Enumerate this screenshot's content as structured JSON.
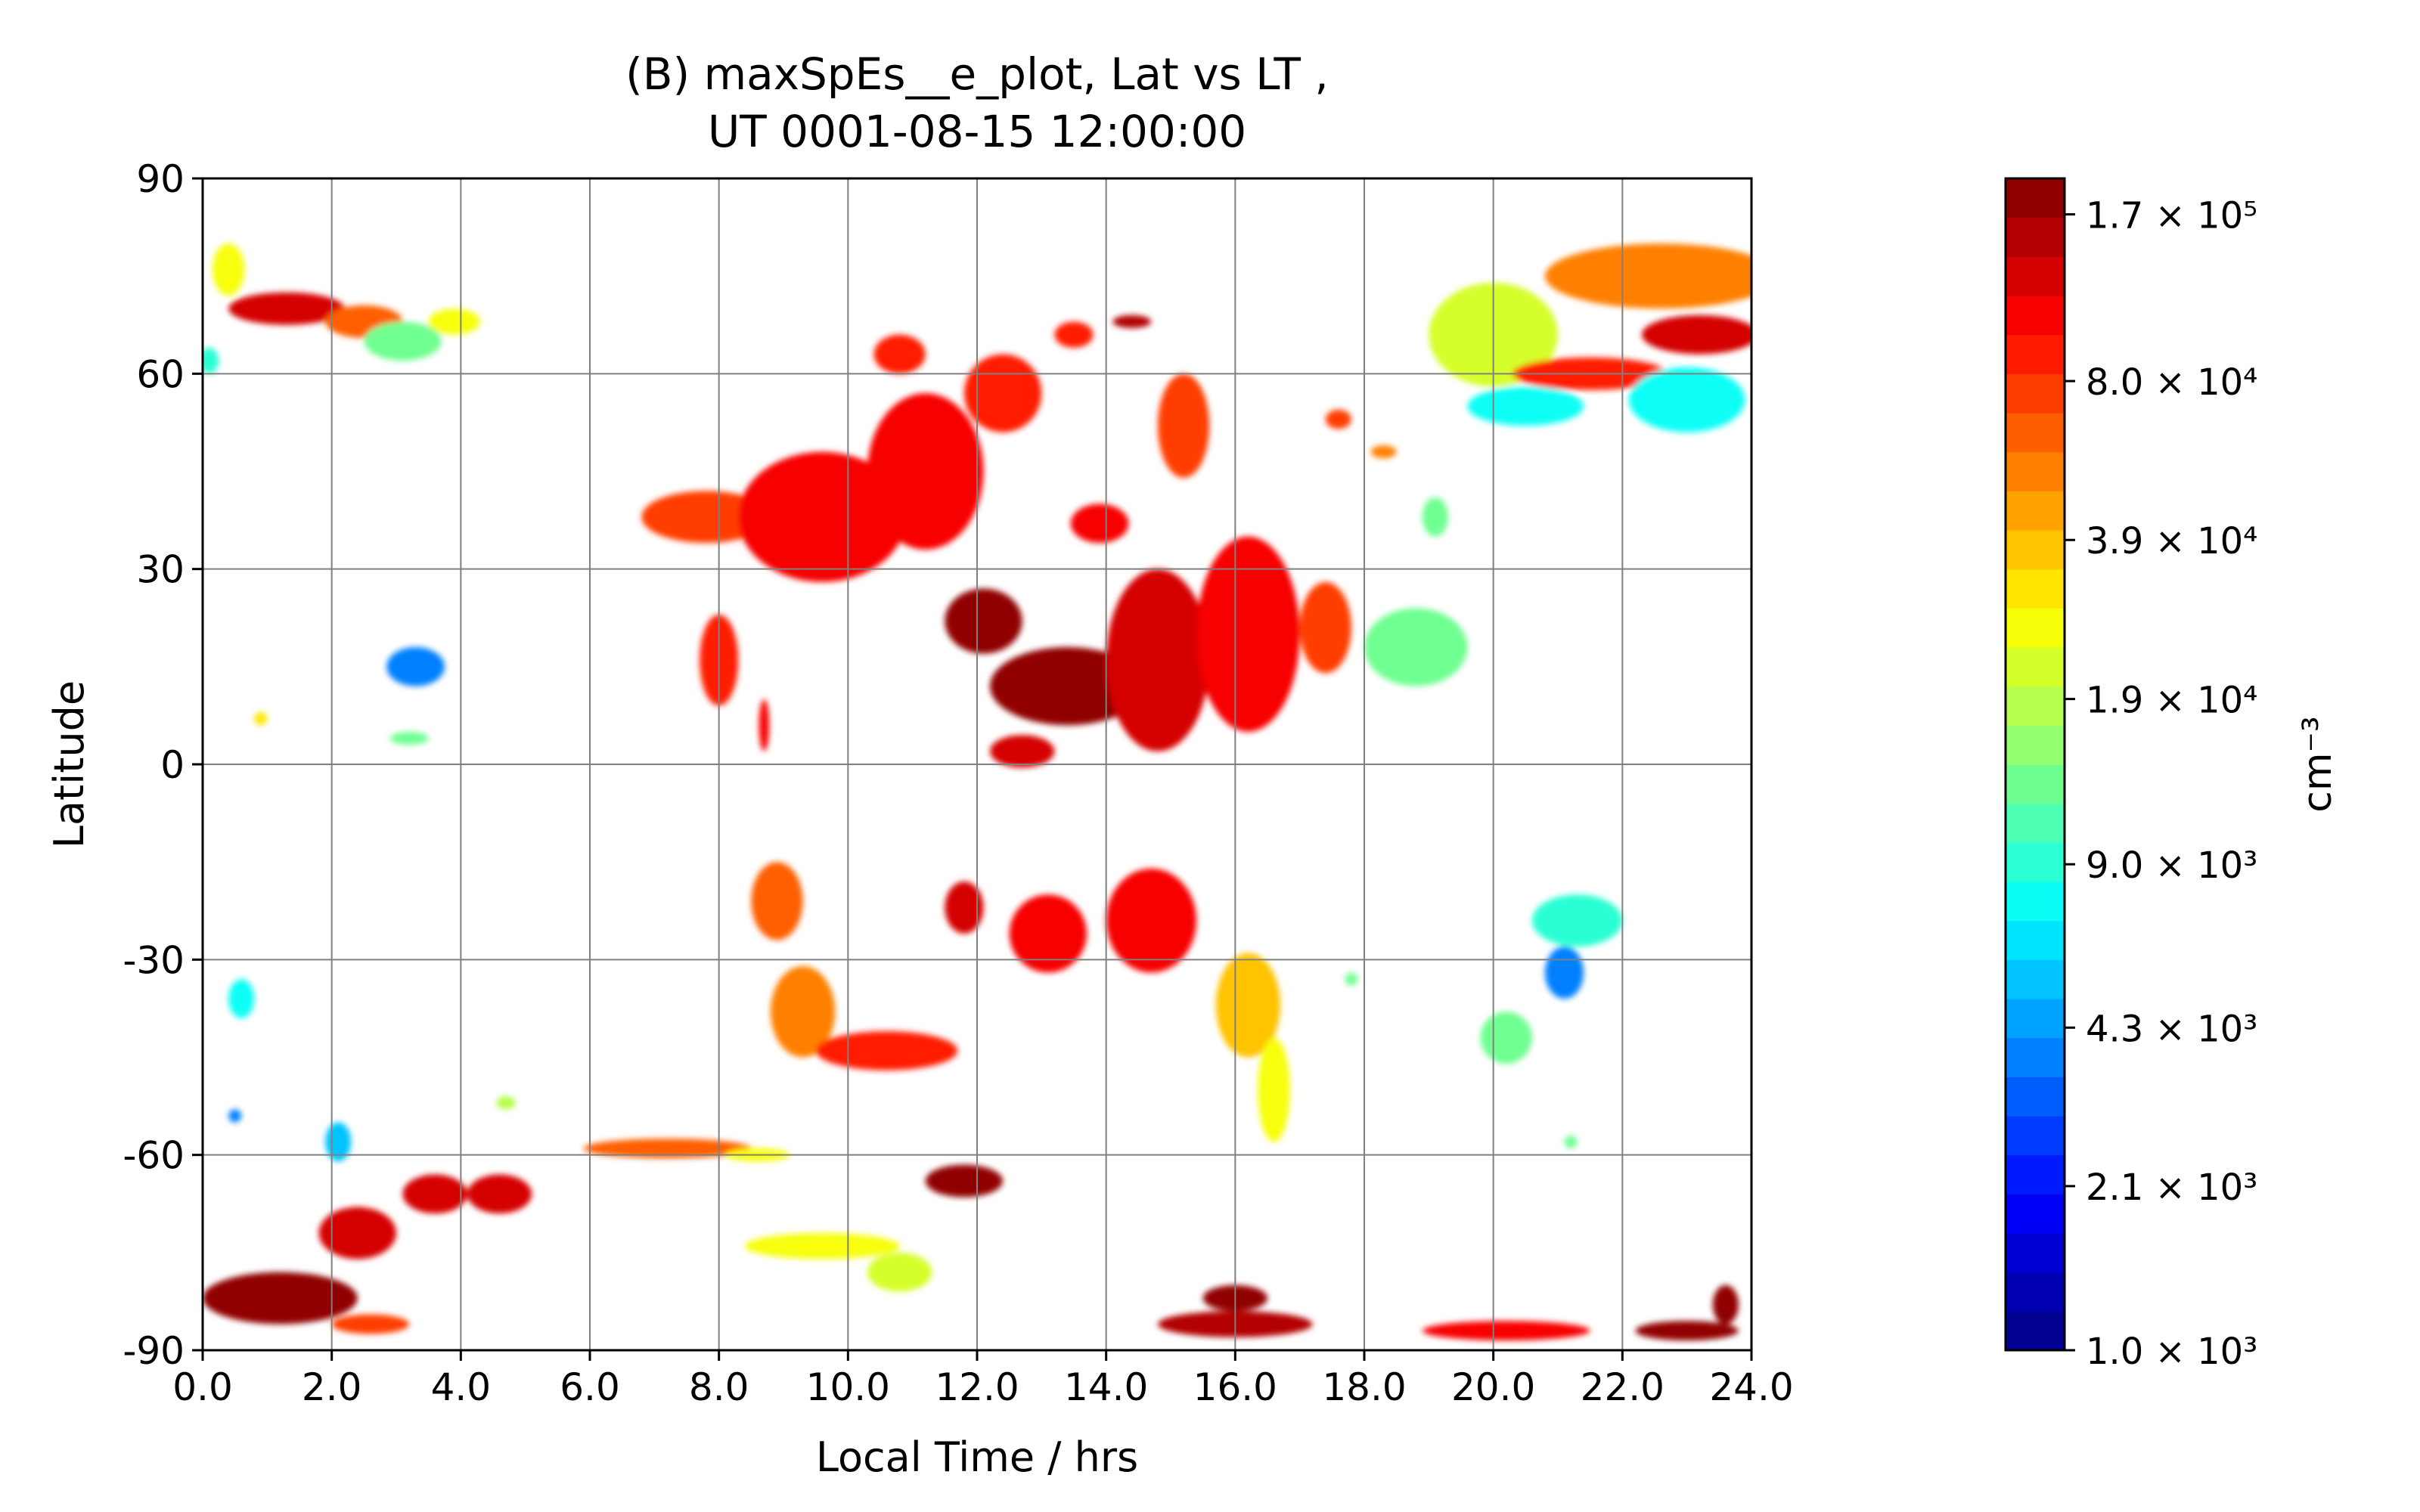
{
  "chart_data": {
    "type": "heatmap",
    "title_line1": "(B) maxSpEs__e_plot, Lat vs LT ,",
    "title_line2": "UT 0001-08-15 12:00:00",
    "xlabel": "Local Time / hrs",
    "ylabel": "Latitude",
    "xlim": [
      0,
      24
    ],
    "ylim": [
      -90,
      90
    ],
    "x_ticks": [
      0,
      2,
      4,
      6,
      8,
      10,
      12,
      14,
      16,
      18,
      20,
      22,
      24
    ],
    "x_tick_labels": [
      "0.0",
      "2.0",
      "4.0",
      "6.0",
      "8.0",
      "10.0",
      "12.0",
      "14.0",
      "16.0",
      "18.0",
      "20.0",
      "22.0",
      "24.0"
    ],
    "y_ticks": [
      -90,
      -60,
      -30,
      0,
      30,
      60,
      90
    ],
    "y_tick_labels": [
      "-90",
      "-60",
      "-30",
      "0",
      "30",
      "60",
      "90"
    ],
    "grid": true,
    "colorbar": {
      "label": "cm⁻³",
      "scale": "log",
      "min": 1000,
      "max": 200000,
      "colormap": "jet",
      "n_levels": 30,
      "tick_values": [
        1000,
        2100,
        4300,
        9000,
        19000,
        39000,
        80000,
        170000
      ],
      "tick_labels": [
        "1.0 × 10³",
        "2.1 × 10³",
        "4.3 × 10³",
        "9.0 × 10³",
        "1.9 × 10⁴",
        "3.9 × 10⁴",
        "8.0 × 10⁴",
        "1.7 × 10⁵"
      ]
    },
    "regions": [
      {
        "lt": 0.4,
        "lat": 76,
        "value": 28000,
        "slt": 0.25,
        "slat": 4
      },
      {
        "lt": 1.3,
        "lat": 70,
        "value": 120000,
        "slt": 0.9,
        "slat": 2.5
      },
      {
        "lt": 2.5,
        "lat": 68,
        "value": 60000,
        "slt": 0.6,
        "slat": 2.5
      },
      {
        "lt": 3.1,
        "lat": 65,
        "value": 12000,
        "slt": 0.6,
        "slat": 3
      },
      {
        "lt": 3.9,
        "lat": 68,
        "value": 28000,
        "slt": 0.4,
        "slat": 2
      },
      {
        "lt": 0.1,
        "lat": 62,
        "value": 9000,
        "slt": 0.15,
        "slat": 2
      },
      {
        "lt": 7.8,
        "lat": 38,
        "value": 75000,
        "slt": 1.0,
        "slat": 4
      },
      {
        "lt": 9.6,
        "lat": 38,
        "value": 100000,
        "slt": 1.3,
        "slat": 10
      },
      {
        "lt": 11.2,
        "lat": 45,
        "value": 110000,
        "slt": 0.9,
        "slat": 12
      },
      {
        "lt": 12.4,
        "lat": 57,
        "value": 85000,
        "slt": 0.6,
        "slat": 6
      },
      {
        "lt": 10.8,
        "lat": 63,
        "value": 90000,
        "slt": 0.4,
        "slat": 3
      },
      {
        "lt": 8.0,
        "lat": 16,
        "value": 85000,
        "slt": 0.3,
        "slat": 7
      },
      {
        "lt": 8.7,
        "lat": 6,
        "value": 110000,
        "slt": 0.08,
        "slat": 4
      },
      {
        "lt": 13.9,
        "lat": 37,
        "value": 100000,
        "slt": 0.45,
        "slat": 3
      },
      {
        "lt": 13.5,
        "lat": 66,
        "value": 95000,
        "slt": 0.3,
        "slat": 2
      },
      {
        "lt": 14.4,
        "lat": 68,
        "value": 150000,
        "slt": 0.3,
        "slat": 1
      },
      {
        "lt": 15.2,
        "lat": 52,
        "value": 70000,
        "slt": 0.4,
        "slat": 8
      },
      {
        "lt": 13.4,
        "lat": 12,
        "value": 190000,
        "slt": 1.2,
        "slat": 6
      },
      {
        "lt": 12.1,
        "lat": 22,
        "value": 170000,
        "slt": 0.6,
        "slat": 5
      },
      {
        "lt": 14.8,
        "lat": 16,
        "value": 140000,
        "slt": 0.8,
        "slat": 14
      },
      {
        "lt": 16.2,
        "lat": 20,
        "value": 110000,
        "slt": 0.8,
        "slat": 15
      },
      {
        "lt": 17.4,
        "lat": 21,
        "value": 70000,
        "slt": 0.4,
        "slat": 7
      },
      {
        "lt": 18.8,
        "lat": 18,
        "value": 14000,
        "slt": 0.8,
        "slat": 6
      },
      {
        "lt": 17.6,
        "lat": 53,
        "value": 80000,
        "slt": 0.2,
        "slat": 1.5
      },
      {
        "lt": 18.3,
        "lat": 48,
        "value": 50000,
        "slt": 0.2,
        "slat": 1
      },
      {
        "lt": 19.1,
        "lat": 38,
        "value": 14000,
        "slt": 0.2,
        "slat": 3
      },
      {
        "lt": 12.7,
        "lat": 2,
        "value": 120000,
        "slt": 0.5,
        "slat": 2.5
      },
      {
        "lt": 20.0,
        "lat": 66,
        "value": 22000,
        "slt": 1.0,
        "slat": 8
      },
      {
        "lt": 22.6,
        "lat": 75,
        "value": 50000,
        "slt": 1.8,
        "slat": 5
      },
      {
        "lt": 23.2,
        "lat": 66,
        "value": 120000,
        "slt": 0.9,
        "slat": 3
      },
      {
        "lt": 21.5,
        "lat": 60,
        "value": 90000,
        "slt": 1.2,
        "slat": 2.5
      },
      {
        "lt": 20.5,
        "lat": 55,
        "value": 8000,
        "slt": 0.9,
        "slat": 3
      },
      {
        "lt": 23.0,
        "lat": 56,
        "value": 7000,
        "slt": 0.9,
        "slat": 5
      },
      {
        "lt": 3.3,
        "lat": 15,
        "value": 3500,
        "slt": 0.45,
        "slat": 3
      },
      {
        "lt": 3.2,
        "lat": 4,
        "value": 14000,
        "slt": 0.3,
        "slat": 1
      },
      {
        "lt": 0.9,
        "lat": 7,
        "value": 30000,
        "slt": 0.1,
        "slat": 1
      },
      {
        "lt": 8.9,
        "lat": -21,
        "value": 60000,
        "slt": 0.4,
        "slat": 6
      },
      {
        "lt": 9.3,
        "lat": -38,
        "value": 50000,
        "slt": 0.5,
        "slat": 7
      },
      {
        "lt": 10.6,
        "lat": -44,
        "value": 90000,
        "slt": 1.1,
        "slat": 3
      },
      {
        "lt": 11.8,
        "lat": -22,
        "value": 130000,
        "slt": 0.3,
        "slat": 4
      },
      {
        "lt": 13.1,
        "lat": -26,
        "value": 110000,
        "slt": 0.6,
        "slat": 6
      },
      {
        "lt": 14.7,
        "lat": -24,
        "value": 100000,
        "slt": 0.7,
        "slat": 8
      },
      {
        "lt": 16.2,
        "lat": -37,
        "value": 40000,
        "slt": 0.5,
        "slat": 8
      },
      {
        "lt": 16.6,
        "lat": -50,
        "value": 25000,
        "slt": 0.25,
        "slat": 8
      },
      {
        "lt": 21.3,
        "lat": -24,
        "value": 9000,
        "slt": 0.7,
        "slat": 4
      },
      {
        "lt": 21.1,
        "lat": -32,
        "value": 4000,
        "slt": 0.3,
        "slat": 4
      },
      {
        "lt": 20.2,
        "lat": -42,
        "value": 12000,
        "slt": 0.4,
        "slat": 4
      },
      {
        "lt": 0.6,
        "lat": -36,
        "value": 8000,
        "slt": 0.2,
        "slat": 3
      },
      {
        "lt": 0.5,
        "lat": -54,
        "value": 3500,
        "slt": 0.1,
        "slat": 1
      },
      {
        "lt": 2.1,
        "lat": -58,
        "value": 5000,
        "slt": 0.2,
        "slat": 3
      },
      {
        "lt": 4.7,
        "lat": -52,
        "value": 20000,
        "slt": 0.15,
        "slat": 1
      },
      {
        "lt": 17.8,
        "lat": -33,
        "value": 14000,
        "slt": 0.1,
        "slat": 1
      },
      {
        "lt": 21.2,
        "lat": -58,
        "value": 14000,
        "slt": 0.1,
        "slat": 1
      },
      {
        "lt": 1.2,
        "lat": -82,
        "value": 190000,
        "slt": 1.2,
        "slat": 4
      },
      {
        "lt": 2.4,
        "lat": -72,
        "value": 130000,
        "slt": 0.6,
        "slat": 4
      },
      {
        "lt": 3.6,
        "lat": -66,
        "value": 120000,
        "slt": 0.5,
        "slat": 3
      },
      {
        "lt": 4.6,
        "lat": -66,
        "value": 130000,
        "slt": 0.5,
        "slat": 3
      },
      {
        "lt": 2.6,
        "lat": -86,
        "value": 80000,
        "slt": 0.6,
        "slat": 1.5
      },
      {
        "lt": 7.2,
        "lat": -59,
        "value": 60000,
        "slt": 1.3,
        "slat": 1.5
      },
      {
        "lt": 8.6,
        "lat": -60,
        "value": 25000,
        "slt": 0.5,
        "slat": 1
      },
      {
        "lt": 11.8,
        "lat": -64,
        "value": 170000,
        "slt": 0.6,
        "slat": 2.5
      },
      {
        "lt": 9.6,
        "lat": -74,
        "value": 28000,
        "slt": 1.2,
        "slat": 2
      },
      {
        "lt": 10.8,
        "lat": -78,
        "value": 22000,
        "slt": 0.5,
        "slat": 3
      },
      {
        "lt": 16.0,
        "lat": -86,
        "value": 160000,
        "slt": 1.2,
        "slat": 2
      },
      {
        "lt": 16.0,
        "lat": -82,
        "value": 190000,
        "slt": 0.5,
        "slat": 2
      },
      {
        "lt": 20.2,
        "lat": -87,
        "value": 110000,
        "slt": 1.3,
        "slat": 1.5
      },
      {
        "lt": 23.0,
        "lat": -87,
        "value": 170000,
        "slt": 0.8,
        "slat": 1.5
      },
      {
        "lt": 23.6,
        "lat": -83,
        "value": 190000,
        "slt": 0.2,
        "slat": 3
      }
    ]
  }
}
